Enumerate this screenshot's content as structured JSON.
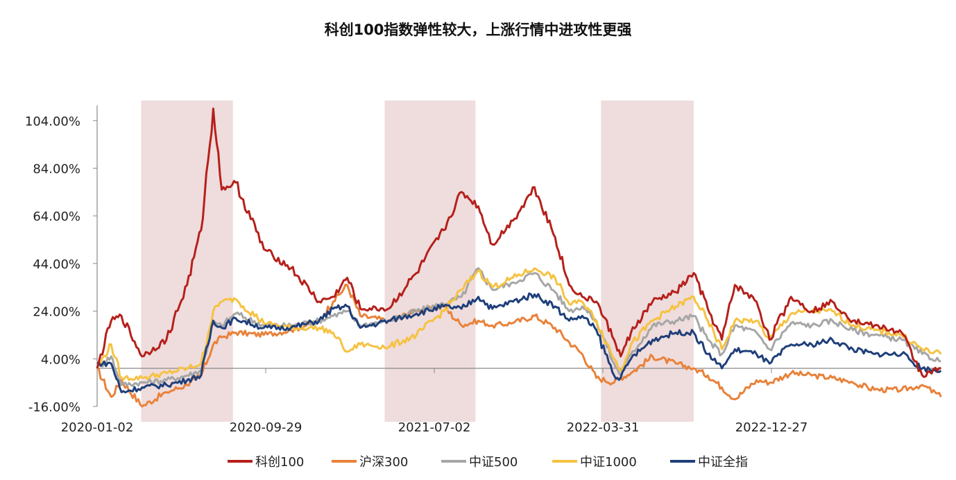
{
  "chart_data": {
    "type": "line",
    "title": "科创100指数弹性较大，上涨行情中进攻性更强",
    "xlabel": "",
    "ylabel": "",
    "x_unit": "trading-day index from 2020-01-02",
    "x_ticks": [
      {
        "day": 0,
        "label": "2020-01-02"
      },
      {
        "day": 180,
        "label": "2020-09-29"
      },
      {
        "day": 360,
        "label": "2021-07-02"
      },
      {
        "day": 540,
        "label": "2022-03-31"
      },
      {
        "day": 720,
        "label": "2022-12-27"
      }
    ],
    "xlim": [
      0,
      901
    ],
    "ylim": [
      -16,
      110
    ],
    "y_ticks": [
      {
        "value": 104,
        "label": "104.00%"
      },
      {
        "value": 84,
        "label": "84.00%"
      },
      {
        "value": 64,
        "label": "64.00%"
      },
      {
        "value": 44,
        "label": "44.00%"
      },
      {
        "value": 24,
        "label": "24.00%"
      },
      {
        "value": 4,
        "label": "4.00%"
      },
      {
        "value": -16,
        "label": "-16.00%"
      }
    ],
    "shaded_periods": [
      [
        47,
        145
      ],
      [
        307,
        404
      ],
      [
        538,
        637
      ]
    ],
    "shade_color": "#EFDCDC",
    "x": [
      0,
      15,
      26,
      48,
      74,
      96,
      111,
      124,
      133,
      148,
      178,
      207,
      237,
      252,
      267,
      281,
      311,
      341,
      370,
      389,
      407,
      422,
      444,
      467,
      489,
      504,
      518,
      533,
      552,
      559,
      570,
      593,
      618,
      637,
      652,
      667,
      681,
      704,
      718,
      741,
      763,
      785,
      807,
      830,
      859,
      881,
      901
    ],
    "series": [
      {
        "name": "沪深300",
        "color": "#E8823A",
        "values": [
          0,
          -12,
          -5,
          -16,
          -10,
          -7,
          -3,
          10,
          13,
          15,
          14,
          16,
          20,
          28,
          35,
          22,
          20,
          24,
          26,
          18,
          20,
          18,
          19,
          22,
          17,
          11,
          6,
          -4,
          -6,
          -4,
          -2,
          5,
          2,
          0,
          -3,
          -8,
          -13,
          -5,
          -6,
          -2,
          -3,
          -4,
          -6,
          -9,
          -9,
          -7,
          -12
        ]
      },
      {
        "name": "中证500",
        "color": "#A6A6A6",
        "values": [
          0,
          5,
          -7,
          -6,
          -5,
          -3,
          -1,
          19,
          18,
          23,
          18,
          18,
          20,
          22,
          24,
          18,
          20,
          24,
          27,
          30,
          42,
          33,
          36,
          40,
          32,
          24,
          26,
          20,
          2,
          -3,
          6,
          18,
          20,
          22,
          12,
          6,
          18,
          15,
          8,
          19,
          18,
          20,
          16,
          14,
          12,
          6,
          3
        ]
      },
      {
        "name": "中证1000",
        "color": "#F5C242",
        "values": [
          0,
          10,
          -4,
          -4,
          -2,
          0,
          2,
          24,
          28,
          29,
          19,
          17,
          17,
          15,
          7,
          10,
          9,
          14,
          24,
          33,
          41,
          34,
          38,
          42,
          38,
          27,
          28,
          20,
          4,
          -1,
          10,
          20,
          26,
          30,
          20,
          8,
          20,
          20,
          12,
          23,
          24,
          24,
          18,
          16,
          14,
          8,
          6
        ]
      },
      {
        "name": "中证全指",
        "color": "#1F3F7A",
        "values": [
          2,
          2,
          -10,
          -8,
          -7,
          -5,
          -3,
          20,
          17,
          21,
          17,
          17,
          20,
          25,
          26,
          17,
          20,
          23,
          26,
          25,
          30,
          25,
          28,
          31,
          26,
          20,
          22,
          16,
          -3,
          -4,
          4,
          12,
          15,
          15,
          6,
          0,
          8,
          6,
          2,
          10,
          10,
          12,
          8,
          6,
          6,
          0,
          -1
        ]
      },
      {
        "name": "科创100",
        "color": "#B5201B",
        "values": [
          0,
          20,
          22,
          5,
          12,
          35,
          58,
          109,
          75,
          78,
          50,
          42,
          28,
          30,
          38,
          25,
          25,
          40,
          58,
          74,
          68,
          52,
          62,
          76,
          55,
          35,
          30,
          28,
          12,
          5,
          15,
          28,
          32,
          40,
          25,
          12,
          35,
          28,
          12,
          30,
          24,
          28,
          20,
          18,
          15,
          -3,
          0
        ]
      }
    ],
    "legend_order": [
      "科创100",
      "沪深300",
      "中证500",
      "中证1000",
      "中证全指"
    ],
    "legend_position": "bottom"
  }
}
